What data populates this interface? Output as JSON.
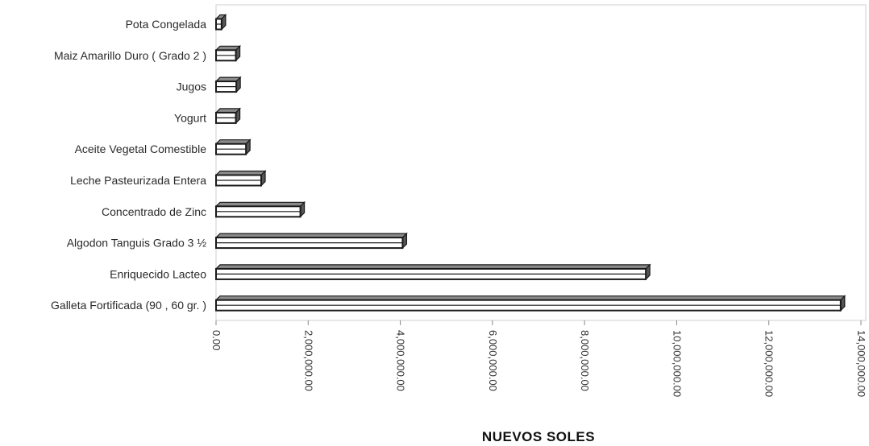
{
  "chart_data": {
    "type": "bar",
    "orientation": "horizontal",
    "title": "",
    "xlabel": "NUEVOS SOLES",
    "ylabel": "",
    "xlim": [
      0,
      14000000
    ],
    "grid": false,
    "legend": "none",
    "categories": [
      "Pota Congelada",
      "Maiz Amarillo Duro ( Grado 2 )",
      "Jugos",
      "Yogurt",
      "Aceite Vegetal Comestible",
      "Leche Pasteurizada Entera",
      "Concentrado de Zinc",
      "Algodon Tanguis Grado 3 ½",
      "Enriquecido Lacteo",
      "Galleta Fortificada (90 , 60 gr. )"
    ],
    "values": [
      120000,
      430000,
      440000,
      430000,
      650000,
      980000,
      1830000,
      4050000,
      9330000,
      13560000
    ],
    "ticks": [
      0,
      2000000,
      4000000,
      6000000,
      8000000,
      10000000,
      12000000,
      14000000
    ],
    "tick_labels": [
      "0.00",
      "2,000,000.00",
      "4,000,000.00",
      "6,000,000.00",
      "8,000,000.00",
      "10,000,000.00",
      "12,000,000.00",
      "14,000,000.00"
    ],
    "colors": {
      "bar_fill": "#ffffff",
      "bar_stroke": "#1a1a1a",
      "bar_side": "#555555",
      "bar_top": "#8a8a8a",
      "frame": "#cfcfcf"
    }
  }
}
